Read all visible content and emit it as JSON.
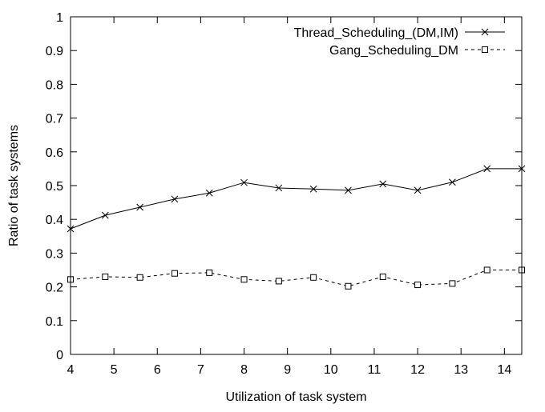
{
  "chart_data": {
    "type": "line",
    "xlabel": "Utilization of task system",
    "ylabel": "Ratio of task systems",
    "xlim": [
      4,
      14.4
    ],
    "ylim": [
      0,
      1
    ],
    "xticks": [
      4,
      5,
      6,
      7,
      8,
      9,
      10,
      11,
      12,
      13,
      14
    ],
    "yticks": [
      0,
      0.1,
      0.2,
      0.3,
      0.4,
      0.5,
      0.6,
      0.7,
      0.8,
      0.9,
      1
    ],
    "grid": false,
    "legend_position": "top-right",
    "x": [
      4.0,
      4.8,
      5.6,
      6.4,
      7.2,
      8.0,
      8.8,
      9.6,
      10.4,
      11.2,
      12.0,
      12.8,
      13.6,
      14.4
    ],
    "series": [
      {
        "name": "Thread_Scheduling_(DM,IM)",
        "marker": "x",
        "line": "solid",
        "values": [
          0.372,
          0.412,
          0.436,
          0.46,
          0.478,
          0.509,
          0.493,
          0.49,
          0.486,
          0.505,
          0.486,
          0.51,
          0.55,
          0.55
        ]
      },
      {
        "name": "Gang_Scheduling_DM",
        "marker": "square",
        "line": "dashed",
        "values": [
          0.222,
          0.23,
          0.228,
          0.24,
          0.242,
          0.222,
          0.217,
          0.228,
          0.202,
          0.23,
          0.206,
          0.21,
          0.25,
          0.25
        ]
      }
    ]
  }
}
